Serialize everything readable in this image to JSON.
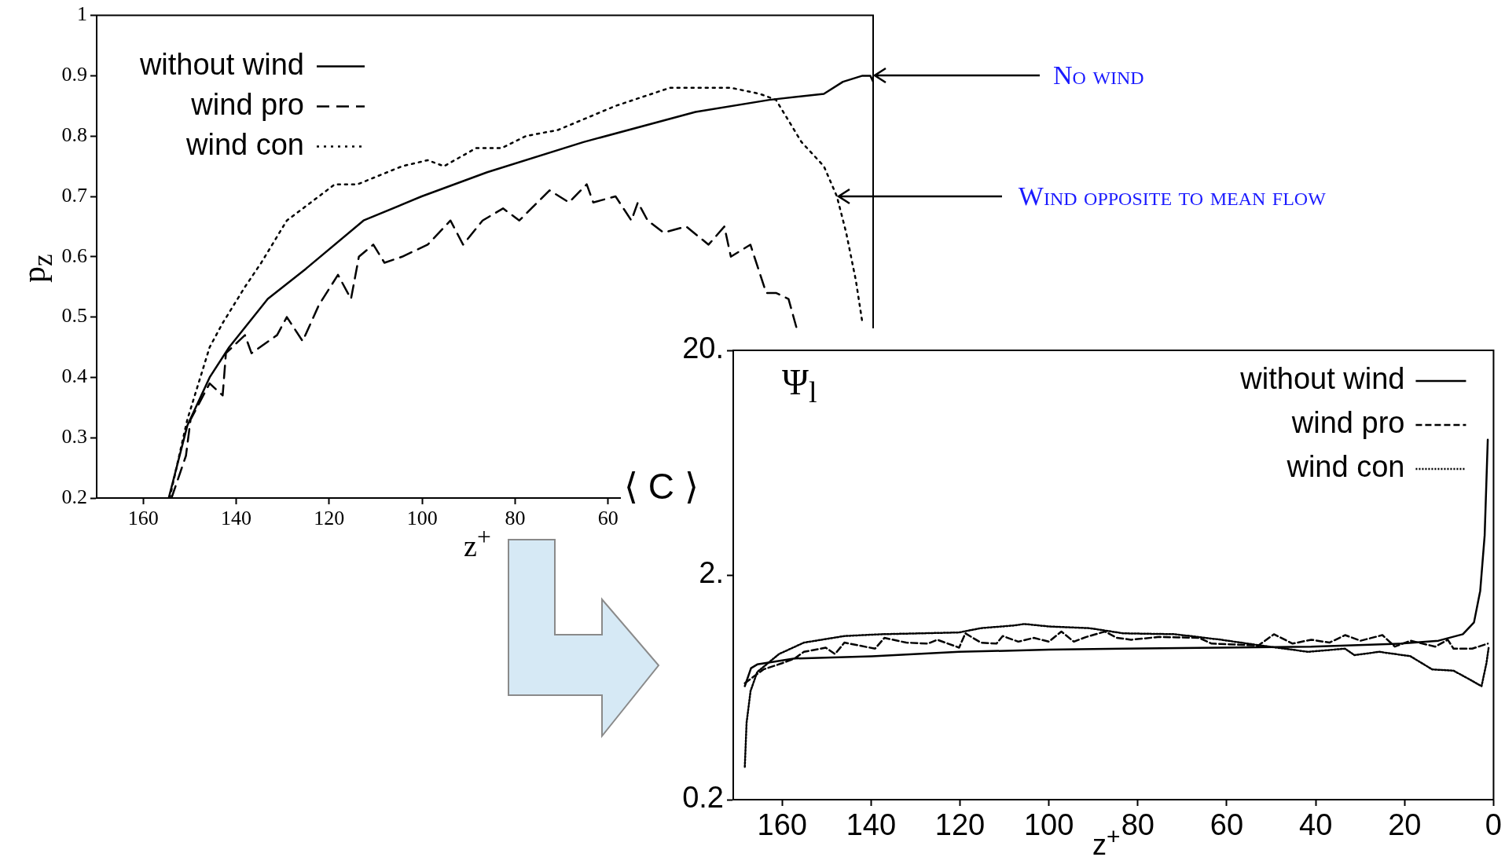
{
  "chart_data": [
    {
      "type": "line",
      "ylabel": "p$_{z}$",
      "xlabel": "z$^{+}$",
      "xlim": [
        170,
        3
      ],
      "xticks": [
        160,
        140,
        120,
        100,
        80,
        60
      ],
      "ylim": [
        0.2,
        1
      ],
      "yticks": [
        0.2,
        0.3,
        0.4,
        0.5,
        0.6,
        0.7,
        0.8,
        0.9,
        1
      ],
      "legend": "top left",
      "marker": "none",
      "annotations": [
        {
          "text": "No wind",
          "x": 3,
          "y": 0.9
        },
        {
          "text": "Wind opposite to mean flow",
          "x": 10.8,
          "y": 0.7
        }
      ],
      "series": [
        {
          "name": "without wind",
          "color": "#000000",
          "line_style": "solid",
          "x": [
            154.5,
            150.5,
            145.7,
            141.5,
            133.2,
            125,
            112.6,
            100.1,
            86,
            65.3,
            41.2,
            25.3,
            13.6,
            9.5,
            5.3,
            3.6,
            3
          ],
          "values": [
            0.2,
            0.32,
            0.4,
            0.45,
            0.53,
            0.58,
            0.66,
            0.7,
            0.74,
            0.79,
            0.84,
            0.86,
            0.87,
            0.89,
            0.9,
            0.9,
            0.89
          ]
        },
        {
          "name": "wind pro",
          "color": "#000000",
          "line_style": "dashed",
          "x": [
            153.9,
            150.8,
            149.8,
            145.7,
            142.9,
            142.2,
            138.1,
            136.7,
            131.2,
            129.1,
            125.7,
            122.2,
            118.1,
            115.3,
            113.6,
            110.5,
            108.1,
            104.3,
            98.8,
            93.9,
            91.2,
            87,
            82.6,
            79.1,
            72.6,
            68.4,
            64.6,
            63.2,
            58.4,
            55,
            53.6,
            51.5,
            48.1,
            43.2,
            38.4,
            35,
            33.6,
            29.4,
            26,
            23.9,
            21.2,
            19.4
          ],
          "values": [
            0.2,
            0.27,
            0.33,
            0.39,
            0.37,
            0.44,
            0.47,
            0.44,
            0.47,
            0.5,
            0.46,
            0.52,
            0.57,
            0.53,
            0.6,
            0.62,
            0.59,
            0.6,
            0.62,
            0.66,
            0.62,
            0.66,
            0.68,
            0.66,
            0.71,
            0.69,
            0.72,
            0.69,
            0.7,
            0.66,
            0.69,
            0.66,
            0.64,
            0.65,
            0.62,
            0.65,
            0.6,
            0.62,
            0.54,
            0.54,
            0.53,
            0.48
          ]
        },
        {
          "name": "wind con",
          "color": "#000000",
          "line_style": "dotted",
          "x": [
            154.3,
            150.5,
            145.7,
            142.9,
            138.1,
            134.6,
            129.1,
            122.2,
            118.8,
            113.9,
            104.3,
            98.8,
            95.3,
            88.4,
            82.9,
            77.7,
            70.8,
            58.4,
            46.7,
            39.1,
            33.6,
            27.4,
            23.9,
            18.4,
            13.6,
            10.8,
            8.8,
            6.7,
            5.3
          ],
          "values": [
            0.2,
            0.33,
            0.45,
            0.49,
            0.55,
            0.59,
            0.66,
            0.7,
            0.72,
            0.72,
            0.75,
            0.76,
            0.75,
            0.78,
            0.78,
            0.8,
            0.81,
            0.85,
            0.88,
            0.88,
            0.88,
            0.87,
            0.86,
            0.79,
            0.75,
            0.7,
            0.64,
            0.56,
            0.49
          ]
        }
      ]
    },
    {
      "type": "line",
      "ylabel": "⟨ C ⟩",
      "xlabel": "z$^{+}$",
      "log": true,
      "xlim": [
        171,
        0
      ],
      "xticks": [
        160,
        140,
        120,
        100,
        80,
        60,
        40,
        20,
        0
      ],
      "ylim": [
        0.2,
        20
      ],
      "yticks": [
        0.2,
        {
          "value": 2,
          "label": "2."
        },
        {
          "value": 20,
          "label": "20."
        }
      ],
      "legend": "top right",
      "marker": "none",
      "annotations": [
        "Ψ$_{l}$"
      ],
      "series": [
        {
          "name": "without wind",
          "color": "#000000",
          "line_style": "solid",
          "x": [
            168.4,
            167,
            165.6,
            157.2,
            139.8,
            120.2,
            100,
            83.3,
            61.3,
            41,
            20.8,
            12.4,
            6.9,
            4.4,
            3,
            2,
            1.3
          ],
          "values": [
            0.64,
            0.77,
            0.8,
            0.85,
            0.87,
            0.91,
            0.93,
            0.94,
            0.95,
            0.96,
            0.99,
            1.02,
            1.09,
            1.23,
            1.7,
            3.0,
            8.0
          ]
        },
        {
          "name": "wind pro",
          "color": "#000000",
          "line_style": "dashed",
          "x": [
            168.4,
            164.2,
            160,
            157.2,
            155.1,
            150.2,
            148.1,
            146,
            139.1,
            137,
            132.1,
            127.2,
            125.1,
            120.2,
            118.8,
            115.3,
            111.8,
            110.4,
            106.9,
            103.4,
            100,
            97.2,
            94.4,
            91.6,
            87.4,
            84.7,
            81.5,
            75.2,
            66.2,
            63.4,
            52.9,
            49.4,
            45.2,
            41,
            36.9,
            33.4,
            29.9,
            25,
            22.2,
            18.7,
            13.1,
            10.3,
            9,
            4.8,
            1.3
          ],
          "values": [
            0.66,
            0.76,
            0.81,
            0.85,
            0.91,
            0.95,
            0.89,
            1.0,
            0.94,
            1.05,
            1.0,
            0.99,
            1.03,
            0.95,
            1.1,
            1.0,
            0.99,
            1.07,
            1.01,
            1.05,
            1.01,
            1.12,
            1.01,
            1.06,
            1.12,
            1.05,
            1.03,
            1.06,
            1.05,
            0.99,
            0.97,
            1.09,
            0.99,
            1.03,
            1.0,
            1.08,
            1.02,
            1.08,
            0.96,
            1.02,
            0.96,
            1.03,
            0.94,
            0.94,
            0.99
          ]
        },
        {
          "name": "wind con",
          "color": "#000000",
          "line_style": "dotted",
          "x": [
            168.4,
            168,
            167.1,
            165.6,
            160.7,
            155.1,
            146,
            137.6,
            120.2,
            115.3,
            108.3,
            105.5,
            100,
            90.9,
            83.3,
            71.7,
            61.3,
            52.2,
            41.7,
            33.4,
            31.3,
            25.7,
            18.7,
            13.8,
            9,
            6.2,
            2.7,
            1.6,
            1.1
          ],
          "values": [
            0.28,
            0.44,
            0.61,
            0.74,
            0.89,
            1.0,
            1.07,
            1.09,
            1.11,
            1.16,
            1.19,
            1.21,
            1.18,
            1.16,
            1.1,
            1.09,
            1.03,
            0.97,
            0.91,
            0.94,
            0.88,
            0.91,
            0.87,
            0.76,
            0.75,
            0.7,
            0.64,
            0.81,
            0.95
          ]
        }
      ]
    }
  ]
}
